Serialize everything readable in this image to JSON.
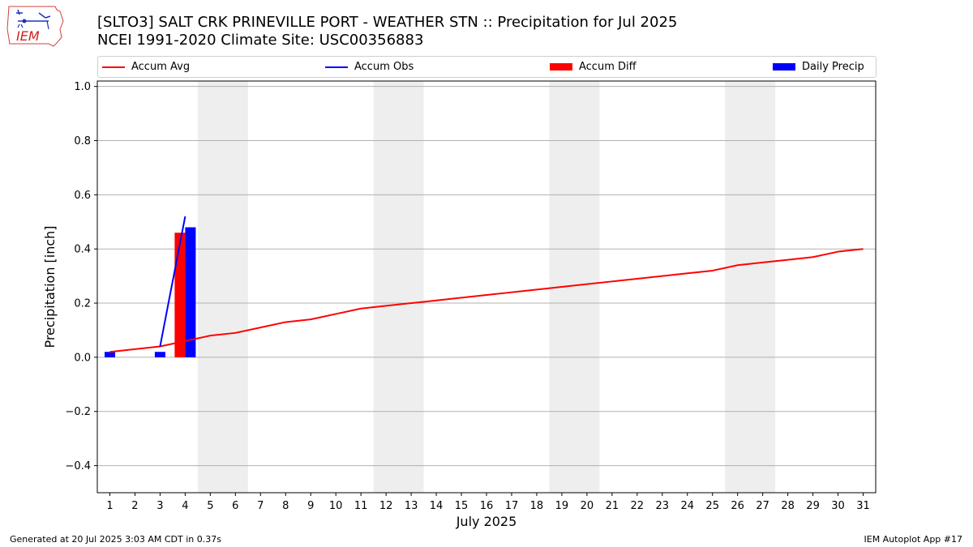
{
  "header": {
    "title_line1": "[SLTO3] SALT CRK  PRINEVILLE PORT - WEATHER STN :: Precipitation for Jul 2025",
    "title_line2": "NCEI 1991-2020 Climate Site: USC00356883",
    "logo_text": "IEM"
  },
  "footer": {
    "left": "Generated at 20 Jul 2025 3:03 AM CDT in 0.37s",
    "right": "IEM Autoplot App #17"
  },
  "legend": {
    "placement": "top, above plot",
    "items": [
      {
        "label": "Accum Avg",
        "kind": "line",
        "color": "#ff0000"
      },
      {
        "label": "Accum Obs",
        "kind": "line",
        "color": "#0000ff"
      },
      {
        "label": "Accum Diff",
        "kind": "bar",
        "color": "#ff0000"
      },
      {
        "label": "Daily Precip",
        "kind": "bar",
        "color": "#0000ff"
      }
    ]
  },
  "chart_data": {
    "type": "bar",
    "xlabel": "July 2025",
    "ylabel": "Precipitation [inch]",
    "xlim": [
      0.5,
      31.5
    ],
    "ylim": [
      -0.5,
      1.02
    ],
    "x_ticks": [
      1,
      2,
      3,
      4,
      5,
      6,
      7,
      8,
      9,
      10,
      11,
      12,
      13,
      14,
      15,
      16,
      17,
      18,
      19,
      20,
      21,
      22,
      23,
      24,
      25,
      26,
      27,
      28,
      29,
      30,
      31
    ],
    "y_ticks": [
      -0.4,
      -0.2,
      0.0,
      0.2,
      0.4,
      0.6,
      0.8,
      1.0
    ],
    "y_tick_labels": [
      "−0.4",
      "−0.2",
      "0.0",
      "0.2",
      "0.4",
      "0.6",
      "0.8",
      "1.0"
    ],
    "grid": "horizontal",
    "weekend_shading": [
      [
        5,
        6
      ],
      [
        12,
        13
      ],
      [
        19,
        20
      ],
      [
        26,
        27
      ]
    ],
    "shade_color": "#eeeeee",
    "series": [
      {
        "name": "Accum Avg",
        "kind": "line",
        "color": "#ff0000",
        "x": [
          1,
          2,
          3,
          4,
          5,
          6,
          7,
          8,
          9,
          10,
          11,
          12,
          13,
          14,
          15,
          16,
          17,
          18,
          19,
          20,
          21,
          22,
          23,
          24,
          25,
          26,
          27,
          28,
          29,
          30,
          31
        ],
        "values": [
          0.02,
          0.03,
          0.04,
          0.06,
          0.08,
          0.09,
          0.11,
          0.13,
          0.14,
          0.16,
          0.18,
          0.19,
          0.2,
          0.21,
          0.22,
          0.23,
          0.24,
          0.25,
          0.26,
          0.27,
          0.28,
          0.29,
          0.3,
          0.31,
          0.32,
          0.34,
          0.35,
          0.36,
          0.37,
          0.39,
          0.4
        ]
      },
      {
        "name": "Accum Obs",
        "kind": "line",
        "color": "#0000ff",
        "x": [
          3,
          4
        ],
        "values": [
          0.04,
          0.52
        ]
      },
      {
        "name": "Accum Diff",
        "kind": "bar",
        "color": "#ff0000",
        "x": [
          4
        ],
        "values": [
          0.46
        ]
      },
      {
        "name": "Daily Precip",
        "kind": "bar",
        "color": "#0000ff",
        "x": [
          1,
          3,
          4
        ],
        "values": [
          0.02,
          0.02,
          0.48
        ]
      }
    ]
  }
}
